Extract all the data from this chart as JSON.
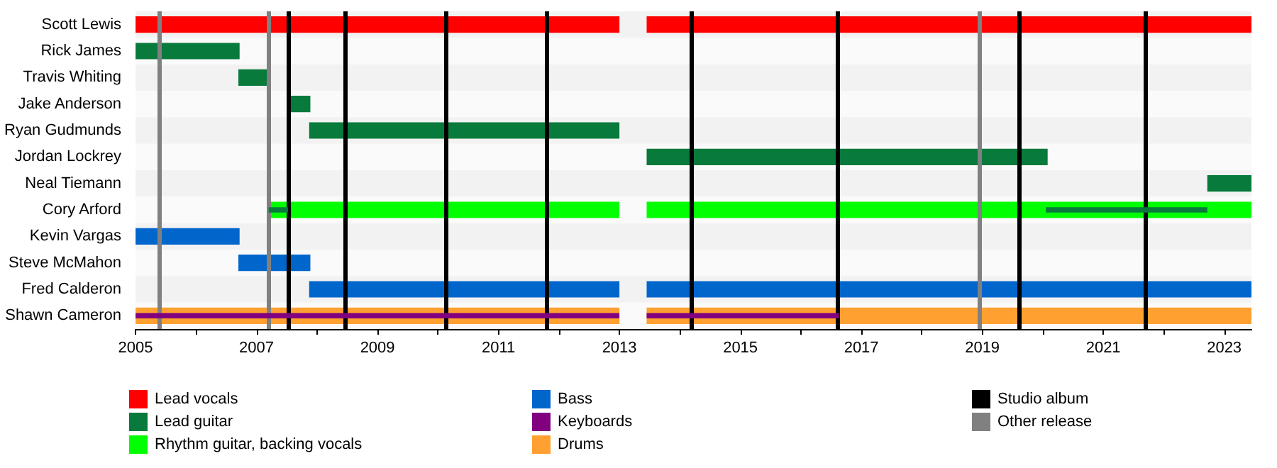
{
  "chart_data": {
    "type": "bar",
    "orientation": "horizontal",
    "categories": [
      "Scott Lewis",
      "Rick James",
      "Travis Whiting",
      "Jake Anderson",
      "Ryan Gudmunds",
      "Jordan Lockrey",
      "Neal Tiemann",
      "Cory Arford",
      "Kevin Vargas",
      "Steve McMahon",
      "Fred Calderon",
      "Shawn Cameron"
    ],
    "series": [
      {
        "name": "Lead vocals",
        "color": "#ff0000",
        "base": [
          2005,
          null,
          null,
          null,
          null,
          null,
          null,
          null,
          null,
          null,
          null,
          null
        ],
        "values": [
          8,
          null,
          null,
          null,
          null,
          null,
          null,
          null,
          null,
          null,
          null,
          null
        ]
      },
      {
        "color": "#ff0000",
        "base": [
          2013.45,
          null,
          null,
          null,
          null,
          null,
          null,
          null,
          null,
          null,
          null,
          null
        ],
        "values": [
          10,
          null,
          null,
          null,
          null,
          null,
          null,
          null,
          null,
          null,
          null,
          null
        ]
      },
      {
        "name": "Lead guitar",
        "color": "#087a3b",
        "base": [
          null,
          2005,
          2006.7,
          2007.52,
          2007.87,
          2013.45,
          2022.72,
          null,
          null,
          null,
          null,
          null
        ],
        "values": [
          null,
          1.72,
          0.5,
          0.37,
          5.13,
          6.63,
          0.73,
          null,
          null,
          null,
          null,
          null
        ]
      },
      {
        "color": "#087a3b",
        "base": [
          null,
          null,
          null,
          null,
          null,
          null,
          null,
          2007.2,
          null,
          null,
          null,
          null
        ],
        "values": [
          null,
          null,
          null,
          null,
          null,
          null,
          null,
          0.32,
          null,
          null,
          null,
          null
        ]
      },
      {
        "color": "#087a3b",
        "base": [
          null,
          null,
          null,
          null,
          null,
          null,
          null,
          2020.05,
          null,
          null,
          null,
          null
        ],
        "values": [
          null,
          null,
          null,
          null,
          null,
          null,
          null,
          2.67,
          null,
          null,
          null,
          null
        ]
      },
      {
        "name": "Rhythm guitar, backing vocals",
        "color": "#00ff00",
        "base": [
          null,
          null,
          null,
          null,
          null,
          null,
          null,
          2007.2,
          null,
          null,
          null,
          null
        ],
        "values": [
          null,
          null,
          null,
          null,
          null,
          null,
          null,
          5.8,
          null,
          null,
          null,
          null
        ]
      },
      {
        "color": "#00ff00",
        "base": [
          null,
          null,
          null,
          null,
          null,
          null,
          null,
          2013.45,
          null,
          null,
          null,
          null
        ],
        "values": [
          null,
          null,
          null,
          null,
          null,
          null,
          null,
          10,
          null,
          null,
          null,
          null
        ]
      },
      {
        "name": "Bass",
        "color": "#0066cc",
        "base": [
          null,
          null,
          null,
          null,
          null,
          null,
          null,
          null,
          2005,
          2006.7,
          2007.87,
          null
        ],
        "values": [
          null,
          null,
          null,
          null,
          null,
          null,
          null,
          null,
          1.72,
          1.19,
          5.13,
          null
        ]
      },
      {
        "color": "#0066cc",
        "base": [
          null,
          null,
          null,
          null,
          null,
          null,
          null,
          null,
          null,
          null,
          2013.45,
          null
        ],
        "values": [
          null,
          null,
          null,
          null,
          null,
          null,
          null,
          null,
          null,
          null,
          10,
          null
        ]
      },
      {
        "name": "Keyboards",
        "color": "#800080",
        "base": [
          null,
          null,
          null,
          null,
          null,
          null,
          null,
          null,
          null,
          null,
          null,
          2005
        ],
        "values": [
          null,
          null,
          null,
          null,
          null,
          null,
          null,
          null,
          null,
          null,
          null,
          8
        ]
      },
      {
        "color": "#800080",
        "base": [
          null,
          null,
          null,
          null,
          null,
          null,
          null,
          null,
          null,
          null,
          null,
          2013.45
        ],
        "values": [
          null,
          null,
          null,
          null,
          null,
          null,
          null,
          null,
          null,
          null,
          null,
          3.18
        ]
      },
      {
        "name": "Drums",
        "color": "#ffa030",
        "base": [
          null,
          null,
          null,
          null,
          null,
          null,
          null,
          null,
          null,
          null,
          null,
          2005
        ],
        "values": [
          null,
          null,
          null,
          null,
          null,
          null,
          null,
          null,
          null,
          null,
          null,
          8
        ]
      },
      {
        "color": "#ffa030",
        "base": [
          null,
          null,
          null,
          null,
          null,
          null,
          null,
          null,
          null,
          null,
          null,
          2013.45
        ],
        "values": [
          null,
          null,
          null,
          null,
          null,
          null,
          null,
          null,
          null,
          null,
          null,
          10
        ]
      }
    ],
    "xlim": [
      2005,
      2023.45
    ],
    "xticks": [
      2005,
      {
        "value": 2006,
        "label": null
      },
      2007,
      {
        "value": 2008,
        "label": null
      },
      2009,
      {
        "value": 2010,
        "label": null
      },
      2011,
      {
        "value": 2012,
        "label": null
      },
      2013,
      {
        "value": 2014,
        "label": null
      },
      2015,
      {
        "value": 2016,
        "label": null
      },
      2017,
      {
        "value": 2018,
        "label": null
      },
      2019,
      {
        "value": 2020,
        "label": null
      },
      2021,
      {
        "value": 2022,
        "label": null
      },
      2023
    ],
    "ref_lines": [
      {
        "axis": "x",
        "value": 2007.52,
        "label": "Studio album",
        "color": "#000000"
      },
      {
        "axis": "x",
        "value": 2008.47,
        "color": "#000000"
      },
      {
        "axis": "x",
        "value": 2010.13,
        "color": "#000000"
      },
      {
        "axis": "x",
        "value": 2011.8,
        "color": "#000000"
      },
      {
        "axis": "x",
        "value": 2014.2,
        "color": "#000000"
      },
      {
        "axis": "x",
        "value": 2016.6,
        "color": "#000000"
      },
      {
        "axis": "x",
        "value": 2019.6,
        "color": "#000000"
      },
      {
        "axis": "x",
        "value": 2021.7,
        "color": "#000000"
      },
      {
        "axis": "x",
        "value": 2005.4,
        "label": "Other release",
        "color": "#808080"
      },
      {
        "axis": "x",
        "value": 2007.19,
        "color": "#808080"
      },
      {
        "axis": "x",
        "value": 2018.96,
        "color": "#808080"
      }
    ],
    "legend": "bottom"
  }
}
